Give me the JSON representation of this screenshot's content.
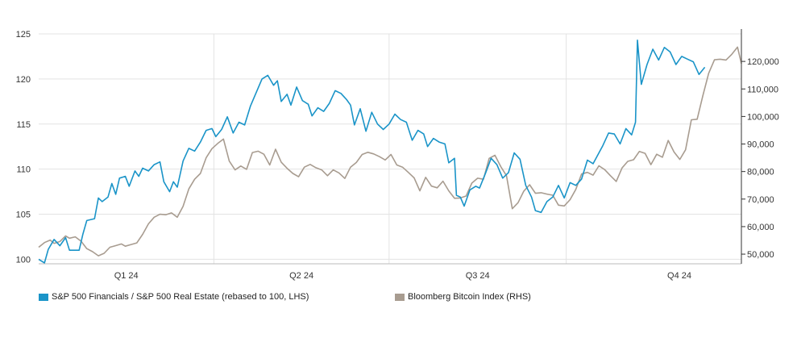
{
  "chart_data": {
    "type": "line",
    "x_axis": {
      "labels": [
        "Q1 24",
        "Q2 24",
        "Q3 24",
        "Q4 24"
      ],
      "range": [
        "2024-01-01",
        "2024-12-31"
      ]
    },
    "y_left": {
      "ticks": [
        "100",
        "105",
        "110",
        "115",
        "120",
        "125"
      ],
      "range": [
        99.5,
        125
      ]
    },
    "y_right": {
      "ticks": [
        "50,000",
        "60,000",
        "70,000",
        "80,000",
        "90,000",
        "100,000",
        "110,000",
        "120,000"
      ],
      "range": [
        46500,
        130000
      ]
    },
    "grid": true,
    "legend_position": "bottom-left",
    "series": [
      {
        "name": "S&P 500 Financials / S&P 500 Real Estate (rebased to 100, LHS)",
        "axis": "left",
        "color": "#1a94c8",
        "points": [
          [
            "2024-01-01",
            100.0
          ],
          [
            "2024-01-04",
            99.6
          ],
          [
            "2024-01-06",
            101.1
          ],
          [
            "2024-01-09",
            102.2
          ],
          [
            "2024-01-12",
            101.5
          ],
          [
            "2024-01-15",
            102.4
          ],
          [
            "2024-01-17",
            101.0
          ],
          [
            "2024-01-22",
            101.0
          ],
          [
            "2024-01-24",
            102.8
          ],
          [
            "2024-01-26",
            104.3
          ],
          [
            "2024-01-30",
            104.5
          ],
          [
            "2024-02-01",
            106.8
          ],
          [
            "2024-02-03",
            106.4
          ],
          [
            "2024-02-06",
            106.9
          ],
          [
            "2024-02-08",
            108.4
          ],
          [
            "2024-02-10",
            107.2
          ],
          [
            "2024-02-12",
            109.0
          ],
          [
            "2024-02-15",
            109.2
          ],
          [
            "2024-02-17",
            108.1
          ],
          [
            "2024-02-20",
            109.8
          ],
          [
            "2024-02-22",
            109.2
          ],
          [
            "2024-02-24",
            110.1
          ],
          [
            "2024-02-27",
            109.8
          ],
          [
            "2024-03-01",
            110.5
          ],
          [
            "2024-03-04",
            110.8
          ],
          [
            "2024-03-06",
            108.6
          ],
          [
            "2024-03-09",
            107.5
          ],
          [
            "2024-03-11",
            108.6
          ],
          [
            "2024-03-13",
            108.0
          ],
          [
            "2024-03-16",
            110.9
          ],
          [
            "2024-03-19",
            112.3
          ],
          [
            "2024-03-22",
            112.0
          ],
          [
            "2024-03-25",
            113.0
          ],
          [
            "2024-03-28",
            114.3
          ],
          [
            "2024-03-31",
            114.5
          ],
          [
            "2024-04-02",
            113.6
          ],
          [
            "2024-04-05",
            114.4
          ],
          [
            "2024-04-08",
            115.8
          ],
          [
            "2024-04-11",
            114.0
          ],
          [
            "2024-04-14",
            115.2
          ],
          [
            "2024-04-17",
            114.9
          ],
          [
            "2024-04-20",
            117.0
          ],
          [
            "2024-04-23",
            118.5
          ],
          [
            "2024-04-26",
            120.0
          ],
          [
            "2024-04-29",
            120.4
          ],
          [
            "2024-05-02",
            119.3
          ],
          [
            "2024-05-04",
            119.8
          ],
          [
            "2024-05-06",
            117.5
          ],
          [
            "2024-05-09",
            118.3
          ],
          [
            "2024-05-11",
            117.1
          ],
          [
            "2024-05-14",
            119.1
          ],
          [
            "2024-05-17",
            117.6
          ],
          [
            "2024-05-20",
            117.2
          ],
          [
            "2024-05-22",
            115.9
          ],
          [
            "2024-05-25",
            116.8
          ],
          [
            "2024-05-28",
            116.4
          ],
          [
            "2024-05-31",
            117.3
          ],
          [
            "2024-06-03",
            118.7
          ],
          [
            "2024-06-06",
            118.4
          ],
          [
            "2024-06-09",
            117.7
          ],
          [
            "2024-06-11",
            117.1
          ],
          [
            "2024-06-13",
            114.9
          ],
          [
            "2024-06-16",
            116.7
          ],
          [
            "2024-06-19",
            114.2
          ],
          [
            "2024-06-22",
            116.3
          ],
          [
            "2024-06-25",
            115.0
          ],
          [
            "2024-06-28",
            114.4
          ],
          [
            "2024-07-01",
            115.0
          ],
          [
            "2024-07-04",
            116.1
          ],
          [
            "2024-07-07",
            115.5
          ],
          [
            "2024-07-10",
            115.2
          ],
          [
            "2024-07-13",
            113.2
          ],
          [
            "2024-07-16",
            114.3
          ],
          [
            "2024-07-19",
            113.9
          ],
          [
            "2024-07-21",
            112.5
          ],
          [
            "2024-07-24",
            113.4
          ],
          [
            "2024-07-27",
            113.0
          ],
          [
            "2024-07-30",
            112.8
          ],
          [
            "2024-08-01",
            110.7
          ],
          [
            "2024-08-04",
            111.2
          ],
          [
            "2024-08-05",
            107.1
          ],
          [
            "2024-08-07",
            106.9
          ],
          [
            "2024-08-09",
            105.9
          ],
          [
            "2024-08-12",
            107.7
          ],
          [
            "2024-08-15",
            108.1
          ],
          [
            "2024-08-17",
            107.9
          ],
          [
            "2024-08-20",
            109.5
          ],
          [
            "2024-08-23",
            111.2
          ],
          [
            "2024-08-26",
            110.5
          ],
          [
            "2024-08-29",
            109.0
          ],
          [
            "2024-09-01",
            109.6
          ],
          [
            "2024-09-04",
            111.8
          ],
          [
            "2024-09-07",
            111.1
          ],
          [
            "2024-09-10",
            108.2
          ],
          [
            "2024-09-13",
            106.9
          ],
          [
            "2024-09-15",
            105.4
          ],
          [
            "2024-09-18",
            105.2
          ],
          [
            "2024-09-21",
            106.4
          ],
          [
            "2024-09-24",
            106.9
          ],
          [
            "2024-09-27",
            108.2
          ],
          [
            "2024-09-30",
            106.8
          ],
          [
            "2024-10-03",
            108.5
          ],
          [
            "2024-10-06",
            108.2
          ],
          [
            "2024-10-09",
            108.9
          ],
          [
            "2024-10-12",
            111.0
          ],
          [
            "2024-10-15",
            110.6
          ],
          [
            "2024-10-18",
            111.8
          ],
          [
            "2024-10-20",
            112.6
          ],
          [
            "2024-10-23",
            114.0
          ],
          [
            "2024-10-26",
            113.9
          ],
          [
            "2024-10-29",
            112.8
          ],
          [
            "2024-11-01",
            114.5
          ],
          [
            "2024-11-04",
            113.8
          ],
          [
            "2024-11-06",
            115.2
          ],
          [
            "2024-11-07",
            124.3
          ],
          [
            "2024-11-09",
            119.4
          ],
          [
            "2024-11-12",
            121.6
          ],
          [
            "2024-11-15",
            123.3
          ],
          [
            "2024-11-18",
            122.1
          ],
          [
            "2024-11-21",
            123.5
          ],
          [
            "2024-11-24",
            123.0
          ],
          [
            "2024-11-27",
            121.6
          ],
          [
            "2024-11-30",
            122.5
          ],
          [
            "2024-12-03",
            122.2
          ],
          [
            "2024-12-06",
            121.9
          ],
          [
            "2024-12-09",
            120.5
          ],
          [
            "2024-12-12",
            121.3
          ]
        ]
      },
      {
        "name": "Bloomberg Bitcoin Index (RHS)",
        "axis": "right",
        "color": "#a89c90",
        "points": [
          [
            "2024-01-01",
            52500
          ],
          [
            "2024-01-04",
            54200
          ],
          [
            "2024-01-07",
            55100
          ],
          [
            "2024-01-09",
            53900
          ],
          [
            "2024-01-12",
            54600
          ],
          [
            "2024-01-15",
            56600
          ],
          [
            "2024-01-17",
            55800
          ],
          [
            "2024-01-20",
            56300
          ],
          [
            "2024-01-23",
            54700
          ],
          [
            "2024-01-26",
            52000
          ],
          [
            "2024-01-29",
            50900
          ],
          [
            "2024-02-01",
            49400
          ],
          [
            "2024-02-04",
            50300
          ],
          [
            "2024-02-07",
            52500
          ],
          [
            "2024-02-10",
            53100
          ],
          [
            "2024-02-13",
            53700
          ],
          [
            "2024-02-15",
            52900
          ],
          [
            "2024-02-18",
            53500
          ],
          [
            "2024-02-21",
            54100
          ],
          [
            "2024-02-24",
            57200
          ],
          [
            "2024-02-27",
            61000
          ],
          [
            "2024-03-01",
            63400
          ],
          [
            "2024-03-04",
            64500
          ],
          [
            "2024-03-07",
            64300
          ],
          [
            "2024-03-10",
            65000
          ],
          [
            "2024-03-13",
            63400
          ],
          [
            "2024-03-16",
            67400
          ],
          [
            "2024-03-19",
            73700
          ],
          [
            "2024-03-22",
            77200
          ],
          [
            "2024-03-25",
            79300
          ],
          [
            "2024-03-28",
            85000
          ],
          [
            "2024-03-31",
            88300
          ],
          [
            "2024-04-03",
            90200
          ],
          [
            "2024-04-06",
            91800
          ],
          [
            "2024-04-09",
            83800
          ],
          [
            "2024-04-12",
            80600
          ],
          [
            "2024-04-15",
            82000
          ],
          [
            "2024-04-18",
            80800
          ],
          [
            "2024-04-21",
            86900
          ],
          [
            "2024-04-24",
            87400
          ],
          [
            "2024-04-27",
            86300
          ],
          [
            "2024-04-30",
            82400
          ],
          [
            "2024-05-03",
            88100
          ],
          [
            "2024-05-06",
            83400
          ],
          [
            "2024-05-09",
            81200
          ],
          [
            "2024-05-12",
            79300
          ],
          [
            "2024-05-15",
            78100
          ],
          [
            "2024-05-18",
            81600
          ],
          [
            "2024-05-21",
            82600
          ],
          [
            "2024-05-24",
            81400
          ],
          [
            "2024-05-27",
            80600
          ],
          [
            "2024-05-30",
            78500
          ],
          [
            "2024-06-02",
            80600
          ],
          [
            "2024-06-05",
            79500
          ],
          [
            "2024-06-08",
            77500
          ],
          [
            "2024-06-11",
            81600
          ],
          [
            "2024-06-14",
            83300
          ],
          [
            "2024-06-17",
            86200
          ],
          [
            "2024-06-20",
            87000
          ],
          [
            "2024-06-23",
            86400
          ],
          [
            "2024-06-26",
            85400
          ],
          [
            "2024-06-29",
            84200
          ],
          [
            "2024-07-02",
            86200
          ],
          [
            "2024-07-05",
            82400
          ],
          [
            "2024-07-08",
            81600
          ],
          [
            "2024-07-11",
            79700
          ],
          [
            "2024-07-14",
            77700
          ],
          [
            "2024-07-17",
            73000
          ],
          [
            "2024-07-20",
            77900
          ],
          [
            "2024-07-23",
            74700
          ],
          [
            "2024-07-26",
            74100
          ],
          [
            "2024-07-29",
            76500
          ],
          [
            "2024-08-01",
            73000
          ],
          [
            "2024-08-04",
            70300
          ],
          [
            "2024-08-07",
            70400
          ],
          [
            "2024-08-10",
            71100
          ],
          [
            "2024-08-13",
            75800
          ],
          [
            "2024-08-16",
            77600
          ],
          [
            "2024-08-19",
            77200
          ],
          [
            "2024-08-22",
            84800
          ],
          [
            "2024-08-25",
            85900
          ],
          [
            "2024-08-28",
            81800
          ],
          [
            "2024-08-31",
            78500
          ],
          [
            "2024-09-03",
            66500
          ],
          [
            "2024-09-06",
            68700
          ],
          [
            "2024-09-09",
            72900
          ],
          [
            "2024-09-12",
            75200
          ],
          [
            "2024-09-15",
            72100
          ],
          [
            "2024-09-18",
            72300
          ],
          [
            "2024-09-21",
            71800
          ],
          [
            "2024-09-24",
            71400
          ],
          [
            "2024-09-27",
            67800
          ],
          [
            "2024-09-30",
            67500
          ],
          [
            "2024-10-03",
            69800
          ],
          [
            "2024-10-06",
            73500
          ],
          [
            "2024-10-09",
            79100
          ],
          [
            "2024-10-12",
            79700
          ],
          [
            "2024-10-15",
            78700
          ],
          [
            "2024-10-18",
            82100
          ],
          [
            "2024-10-21",
            80700
          ],
          [
            "2024-10-24",
            78500
          ],
          [
            "2024-10-27",
            76400
          ],
          [
            "2024-10-30",
            81300
          ],
          [
            "2024-11-02",
            83700
          ],
          [
            "2024-11-05",
            84300
          ],
          [
            "2024-11-08",
            87300
          ],
          [
            "2024-11-11",
            86600
          ],
          [
            "2024-11-14",
            82500
          ],
          [
            "2024-11-17",
            86300
          ],
          [
            "2024-11-20",
            85200
          ],
          [
            "2024-11-23",
            91300
          ],
          [
            "2024-11-26",
            87100
          ],
          [
            "2024-11-29",
            84400
          ],
          [
            "2024-12-02",
            87900
          ],
          [
            "2024-12-05",
            98800
          ],
          [
            "2024-12-08",
            99000
          ],
          [
            "2024-12-11",
            107600
          ],
          [
            "2024-12-14",
            115700
          ],
          [
            "2024-12-17",
            120600
          ],
          [
            "2024-12-20",
            120800
          ],
          [
            "2024-12-23",
            120500
          ],
          [
            "2024-12-26",
            122600
          ],
          [
            "2024-12-29",
            125200
          ],
          [
            "2024-12-31",
            119200
          ]
        ]
      }
    ]
  }
}
